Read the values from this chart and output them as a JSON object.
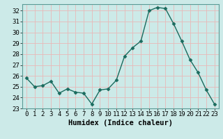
{
  "x": [
    0,
    1,
    2,
    3,
    4,
    5,
    6,
    7,
    8,
    9,
    10,
    11,
    12,
    13,
    14,
    15,
    16,
    17,
    18,
    19,
    20,
    21,
    22,
    23
  ],
  "y": [
    25.8,
    25.0,
    25.1,
    25.5,
    24.4,
    24.8,
    24.5,
    24.4,
    23.4,
    24.7,
    24.8,
    25.6,
    27.8,
    28.6,
    29.2,
    32.0,
    32.3,
    32.2,
    30.8,
    29.2,
    27.5,
    26.3,
    24.7,
    23.4
  ],
  "line_color": "#1a6b5e",
  "marker": "D",
  "marker_size": 2.5,
  "bg_color": "#cceae8",
  "grid_color": "#e8b8b8",
  "title": "",
  "xlabel": "Humidex (Indice chaleur)",
  "ylabel": "",
  "xlim": [
    -0.5,
    23.5
  ],
  "ylim": [
    23,
    32.6
  ],
  "yticks": [
    23,
    24,
    25,
    26,
    27,
    28,
    29,
    30,
    31,
    32
  ],
  "xticks": [
    0,
    1,
    2,
    3,
    4,
    5,
    6,
    7,
    8,
    9,
    10,
    11,
    12,
    13,
    14,
    15,
    16,
    17,
    18,
    19,
    20,
    21,
    22,
    23
  ],
  "xlabel_fontsize": 7.5,
  "tick_fontsize": 6.5,
  "line_width": 1.0
}
